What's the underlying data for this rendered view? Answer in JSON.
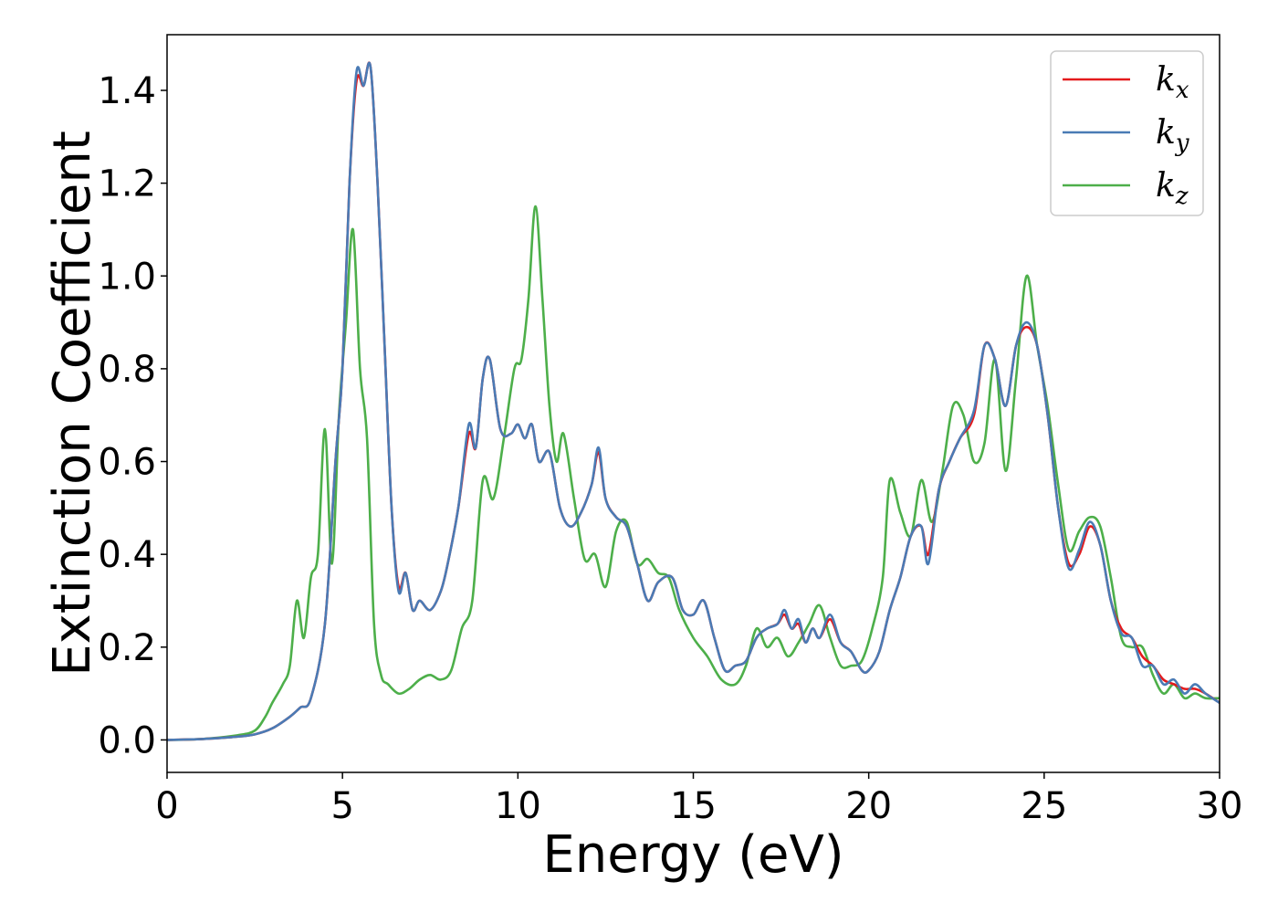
{
  "chart_data": {
    "type": "line",
    "title": "",
    "xlabel": "Energy (eV)",
    "ylabel": "Extinction Coefficient",
    "xlim": [
      0,
      30
    ],
    "ylim": [
      -0.07,
      1.52
    ],
    "xticks": [
      0,
      5,
      10,
      15,
      20,
      25,
      30
    ],
    "xtick_labels": [
      "0",
      "5",
      "10",
      "15",
      "20",
      "25",
      "30"
    ],
    "yticks": [
      0.0,
      0.2,
      0.4,
      0.6,
      0.8,
      1.0,
      1.2,
      1.4
    ],
    "ytick_labels": [
      "0.0",
      "0.2",
      "0.4",
      "0.6",
      "0.8",
      "1.0",
      "1.2",
      "1.4"
    ],
    "grid": false,
    "legend_position": "top-right",
    "series": [
      {
        "name": "k",
        "subscript": "x",
        "color": "#e41a1c",
        "x": [
          0,
          1,
          2,
          2.5,
          3,
          3.5,
          3.8,
          4.1,
          4.5,
          4.8,
          5.0,
          5.2,
          5.4,
          5.6,
          5.8,
          6.0,
          6.2,
          6.4,
          6.6,
          6.8,
          7.0,
          7.2,
          7.5,
          7.8,
          8.0,
          8.3,
          8.6,
          8.8,
          9.0,
          9.2,
          9.5,
          9.8,
          10.0,
          10.2,
          10.4,
          10.6,
          10.9,
          11.2,
          11.5,
          11.8,
          12.1,
          12.3,
          12.5,
          12.8,
          13.1,
          13.4,
          13.7,
          14.0,
          14.4,
          14.7,
          15.0,
          15.3,
          15.6,
          15.9,
          16.2,
          16.5,
          16.8,
          17.1,
          17.4,
          17.6,
          17.8,
          18.0,
          18.2,
          18.4,
          18.6,
          18.9,
          19.2,
          19.5,
          19.8,
          20.0,
          20.3,
          20.6,
          20.9,
          21.2,
          21.5,
          21.7,
          22.0,
          22.3,
          22.6,
          23.0,
          23.3,
          23.6,
          23.9,
          24.2,
          24.5,
          24.8,
          25.1,
          25.4,
          25.7,
          26.0,
          26.3,
          26.6,
          26.9,
          27.2,
          27.5,
          27.8,
          28.1,
          28.4,
          28.7,
          29.0,
          29.3,
          29.6,
          30.0
        ],
        "values": [
          0,
          0.002,
          0.007,
          0.012,
          0.025,
          0.05,
          0.07,
          0.09,
          0.25,
          0.6,
          0.8,
          1.2,
          1.42,
          1.41,
          1.45,
          1.2,
          0.85,
          0.5,
          0.33,
          0.36,
          0.28,
          0.3,
          0.28,
          0.32,
          0.38,
          0.5,
          0.66,
          0.63,
          0.78,
          0.82,
          0.67,
          0.66,
          0.68,
          0.65,
          0.68,
          0.6,
          0.62,
          0.5,
          0.46,
          0.49,
          0.55,
          0.62,
          0.52,
          0.48,
          0.46,
          0.38,
          0.3,
          0.34,
          0.35,
          0.28,
          0.27,
          0.3,
          0.22,
          0.15,
          0.16,
          0.17,
          0.22,
          0.24,
          0.25,
          0.27,
          0.24,
          0.25,
          0.21,
          0.24,
          0.22,
          0.26,
          0.21,
          0.19,
          0.15,
          0.15,
          0.19,
          0.28,
          0.35,
          0.44,
          0.46,
          0.4,
          0.54,
          0.6,
          0.65,
          0.7,
          0.85,
          0.82,
          0.72,
          0.85,
          0.89,
          0.85,
          0.7,
          0.5,
          0.38,
          0.4,
          0.46,
          0.42,
          0.3,
          0.24,
          0.22,
          0.18,
          0.16,
          0.13,
          0.12,
          0.11,
          0.11,
          0.1,
          0.08
        ]
      },
      {
        "name": "k",
        "subscript": "y",
        "color": "#4a7bb5",
        "x": [
          0,
          1,
          2,
          2.5,
          3,
          3.5,
          3.8,
          4.1,
          4.5,
          4.8,
          5.0,
          5.2,
          5.4,
          5.6,
          5.8,
          6.0,
          6.2,
          6.4,
          6.6,
          6.8,
          7.0,
          7.2,
          7.5,
          7.8,
          8.0,
          8.3,
          8.6,
          8.8,
          9.0,
          9.2,
          9.5,
          9.8,
          10.0,
          10.2,
          10.4,
          10.6,
          10.9,
          11.2,
          11.5,
          11.8,
          12.1,
          12.3,
          12.5,
          12.8,
          13.1,
          13.4,
          13.7,
          14.0,
          14.4,
          14.7,
          15.0,
          15.3,
          15.6,
          15.9,
          16.2,
          16.5,
          16.8,
          17.1,
          17.4,
          17.6,
          17.8,
          18.0,
          18.2,
          18.4,
          18.6,
          18.9,
          19.2,
          19.5,
          19.8,
          20.0,
          20.3,
          20.6,
          20.9,
          21.2,
          21.5,
          21.7,
          22.0,
          22.3,
          22.6,
          23.0,
          23.3,
          23.6,
          23.9,
          24.2,
          24.5,
          24.8,
          25.1,
          25.4,
          25.7,
          26.0,
          26.3,
          26.6,
          26.9,
          27.2,
          27.5,
          27.8,
          28.1,
          28.4,
          28.7,
          29.0,
          29.3,
          29.6,
          30.0
        ],
        "values": [
          0,
          0.002,
          0.007,
          0.012,
          0.025,
          0.05,
          0.07,
          0.09,
          0.25,
          0.6,
          0.8,
          1.2,
          1.44,
          1.41,
          1.45,
          1.2,
          0.85,
          0.5,
          0.32,
          0.36,
          0.28,
          0.3,
          0.28,
          0.32,
          0.38,
          0.5,
          0.68,
          0.63,
          0.78,
          0.82,
          0.67,
          0.66,
          0.68,
          0.65,
          0.68,
          0.6,
          0.62,
          0.5,
          0.46,
          0.49,
          0.55,
          0.63,
          0.52,
          0.48,
          0.46,
          0.38,
          0.3,
          0.34,
          0.35,
          0.28,
          0.27,
          0.3,
          0.22,
          0.15,
          0.16,
          0.17,
          0.22,
          0.24,
          0.25,
          0.28,
          0.24,
          0.26,
          0.21,
          0.24,
          0.22,
          0.27,
          0.21,
          0.19,
          0.15,
          0.15,
          0.19,
          0.28,
          0.35,
          0.44,
          0.46,
          0.38,
          0.54,
          0.6,
          0.65,
          0.71,
          0.85,
          0.82,
          0.72,
          0.85,
          0.9,
          0.85,
          0.7,
          0.5,
          0.37,
          0.41,
          0.47,
          0.42,
          0.3,
          0.23,
          0.22,
          0.16,
          0.16,
          0.12,
          0.13,
          0.1,
          0.12,
          0.1,
          0.08
        ]
      },
      {
        "name": "k",
        "subscript": "z",
        "color": "#4daf4a",
        "x": [
          0,
          1,
          2,
          2.5,
          2.8,
          3.0,
          3.3,
          3.5,
          3.7,
          3.9,
          4.1,
          4.3,
          4.5,
          4.7,
          4.9,
          5.1,
          5.3,
          5.5,
          5.7,
          5.9,
          6.1,
          6.3,
          6.6,
          6.9,
          7.2,
          7.5,
          7.8,
          8.1,
          8.4,
          8.7,
          9.0,
          9.3,
          9.6,
          9.9,
          10.1,
          10.3,
          10.5,
          10.7,
          10.9,
          11.1,
          11.3,
          11.6,
          11.9,
          12.2,
          12.5,
          12.8,
          13.1,
          13.4,
          13.7,
          14.0,
          14.3,
          14.6,
          15.0,
          15.4,
          15.8,
          16.2,
          16.5,
          16.8,
          17.1,
          17.4,
          17.7,
          18.0,
          18.3,
          18.6,
          18.9,
          19.2,
          19.5,
          19.8,
          20.1,
          20.4,
          20.6,
          20.9,
          21.2,
          21.5,
          21.8,
          22.1,
          22.4,
          22.7,
          23.0,
          23.3,
          23.6,
          23.9,
          24.2,
          24.5,
          24.8,
          25.1,
          25.4,
          25.7,
          26.0,
          26.3,
          26.6,
          26.9,
          27.2,
          27.5,
          27.8,
          28.1,
          28.4,
          28.7,
          29.0,
          29.3,
          29.6,
          30.0
        ],
        "values": [
          0,
          0.002,
          0.01,
          0.02,
          0.05,
          0.08,
          0.12,
          0.16,
          0.3,
          0.22,
          0.35,
          0.4,
          0.67,
          0.38,
          0.7,
          0.9,
          1.1,
          0.8,
          0.65,
          0.25,
          0.14,
          0.12,
          0.1,
          0.11,
          0.13,
          0.14,
          0.13,
          0.15,
          0.24,
          0.3,
          0.56,
          0.52,
          0.65,
          0.8,
          0.82,
          0.95,
          1.15,
          0.95,
          0.72,
          0.6,
          0.66,
          0.52,
          0.39,
          0.4,
          0.33,
          0.45,
          0.47,
          0.38,
          0.39,
          0.36,
          0.35,
          0.28,
          0.22,
          0.18,
          0.13,
          0.12,
          0.16,
          0.24,
          0.2,
          0.22,
          0.18,
          0.21,
          0.25,
          0.29,
          0.22,
          0.16,
          0.16,
          0.17,
          0.24,
          0.35,
          0.56,
          0.49,
          0.44,
          0.56,
          0.47,
          0.58,
          0.72,
          0.7,
          0.6,
          0.64,
          0.82,
          0.58,
          0.78,
          1.0,
          0.85,
          0.72,
          0.55,
          0.41,
          0.45,
          0.48,
          0.46,
          0.35,
          0.22,
          0.2,
          0.2,
          0.14,
          0.1,
          0.12,
          0.09,
          0.1,
          0.09,
          0.09
        ]
      }
    ]
  }
}
